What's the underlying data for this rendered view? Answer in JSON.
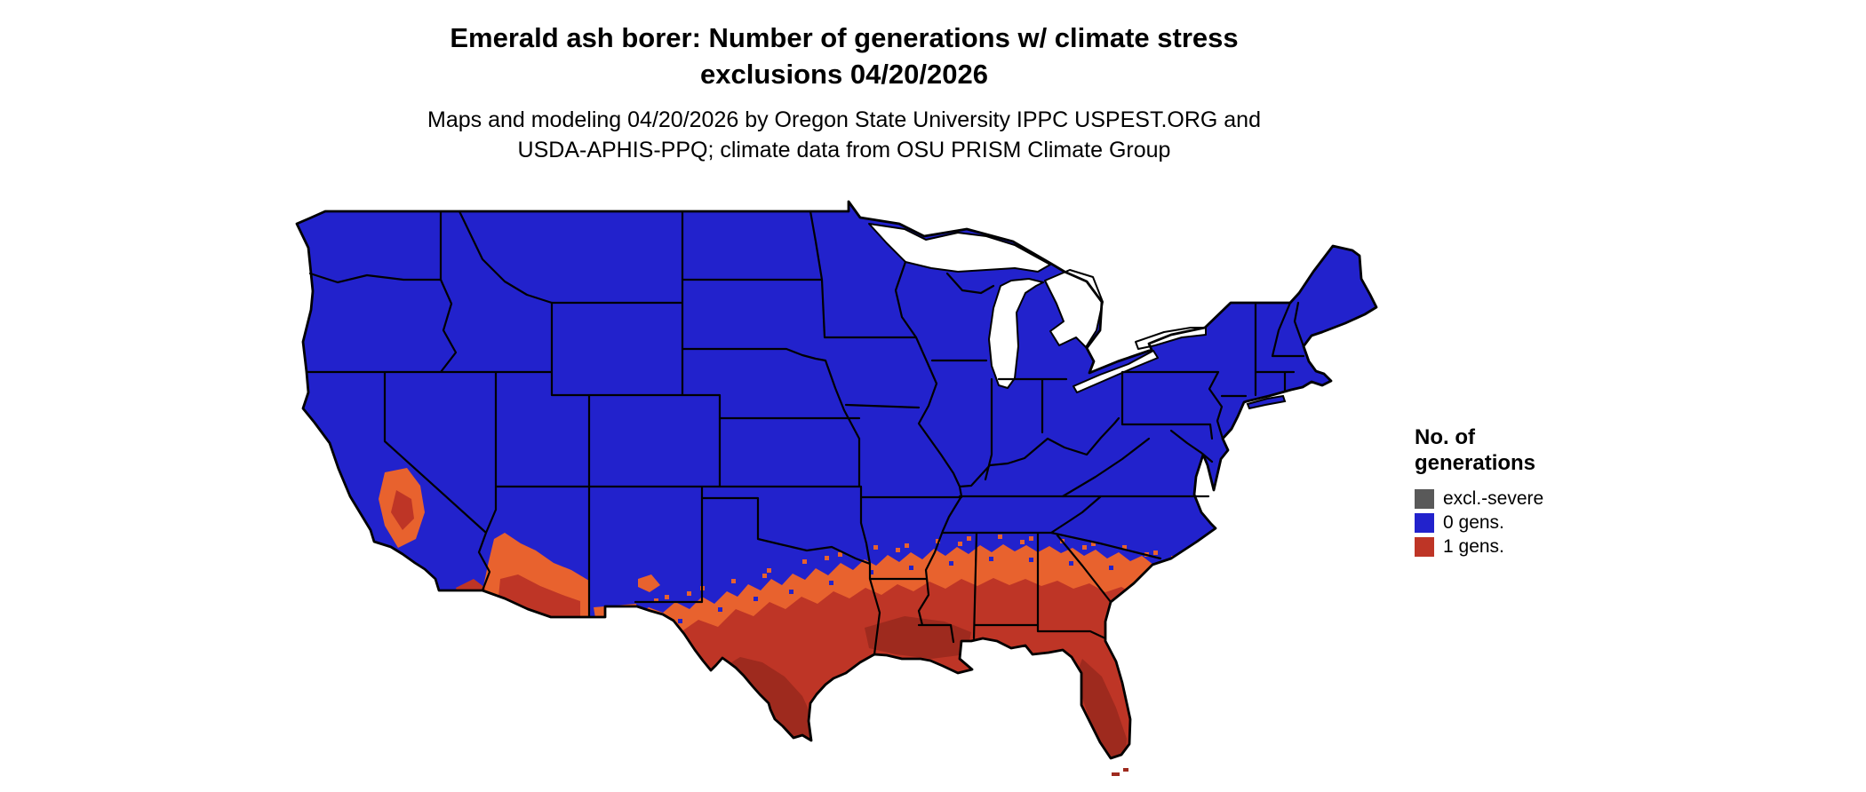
{
  "title": {
    "line1": "Emerald ash borer: Number of generations w/ climate stress",
    "line2": "exclusions 04/20/2026"
  },
  "subtitle": {
    "line1": "Maps and modeling 04/20/2026 by Oregon State University IPPC USPEST.ORG and",
    "line2": "USDA-APHIS-PPQ; climate data from OSU PRISM Climate Group"
  },
  "legend": {
    "title_line1": "No. of",
    "title_line2": "generations",
    "items": [
      {
        "label": "excl.-severe",
        "color": "#595959"
      },
      {
        "label": "0 gens.",
        "color": "#2222CC"
      },
      {
        "label": "1 gens.",
        "color": "#BE3526"
      }
    ]
  },
  "map": {
    "region": "Contiguous United States",
    "date_shown": "04/20/2026",
    "colors": {
      "no_generations": "#2222CC",
      "one_generation": "#BE3526",
      "one_generation_fringe": "#E8622E",
      "one_generation_deep": "#9E2A1E",
      "exclusion_severe": "#595959",
      "state_border": "#000000",
      "background": "#FFFFFF"
    }
  }
}
